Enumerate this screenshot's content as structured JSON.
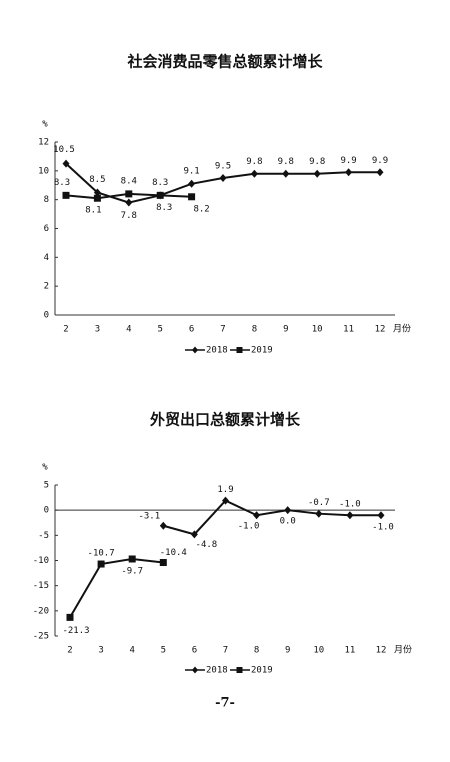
{
  "chart_data": [
    {
      "type": "line",
      "title": "社会消费品零售总额累计增长",
      "y_unit": "%",
      "x_label": "月份",
      "categories": [
        "2",
        "3",
        "4",
        "5",
        "6",
        "7",
        "8",
        "9",
        "10",
        "11",
        "12"
      ],
      "ylim": [
        0,
        12
      ],
      "yticks": [
        0,
        2,
        4,
        6,
        8,
        10,
        12
      ],
      "series": [
        {
          "name": "2018",
          "color": "#111111",
          "marker": "diamond",
          "values": [
            10.5,
            8.5,
            7.8,
            8.3,
            9.1,
            9.5,
            9.8,
            9.8,
            9.8,
            9.9,
            9.9
          ]
        },
        {
          "name": "2019",
          "color": "#111111",
          "marker": "square",
          "values": [
            8.3,
            8.1,
            8.4,
            8.3,
            8.2,
            null,
            null,
            null,
            null,
            null,
            null
          ]
        }
      ]
    },
    {
      "type": "line",
      "title": "外贸出口总额累计增长",
      "y_unit": "%",
      "x_label": "月份",
      "categories": [
        "2",
        "3",
        "4",
        "5",
        "6",
        "7",
        "8",
        "9",
        "10",
        "11",
        "12"
      ],
      "ylim": [
        -25,
        5
      ],
      "yticks": [
        -25,
        -20,
        -15,
        -10,
        -5,
        0,
        5
      ],
      "series": [
        {
          "name": "2018",
          "color": "#111111",
          "marker": "diamond",
          "values": [
            null,
            null,
            null,
            -3.1,
            -4.8,
            1.9,
            -1.0,
            0.0,
            -0.7,
            -1.0,
            -1.0
          ],
          "value_labels": [
            null,
            null,
            null,
            "-3.1",
            "-4.8",
            "1.9",
            "-1.0",
            "0.0",
            "-0.7",
            "-1.0",
            "-1.0"
          ]
        },
        {
          "name": "2019",
          "color": "#111111",
          "marker": "square",
          "values": [
            -21.3,
            -10.7,
            -9.7,
            -10.4,
            null,
            null,
            null,
            null,
            null,
            null,
            null
          ],
          "value_labels": [
            "-21.3",
            "-10.7",
            "-9.7",
            "-10.4",
            null,
            null,
            null,
            null,
            null,
            null,
            null
          ]
        }
      ]
    }
  ],
  "page_number": "-7-"
}
